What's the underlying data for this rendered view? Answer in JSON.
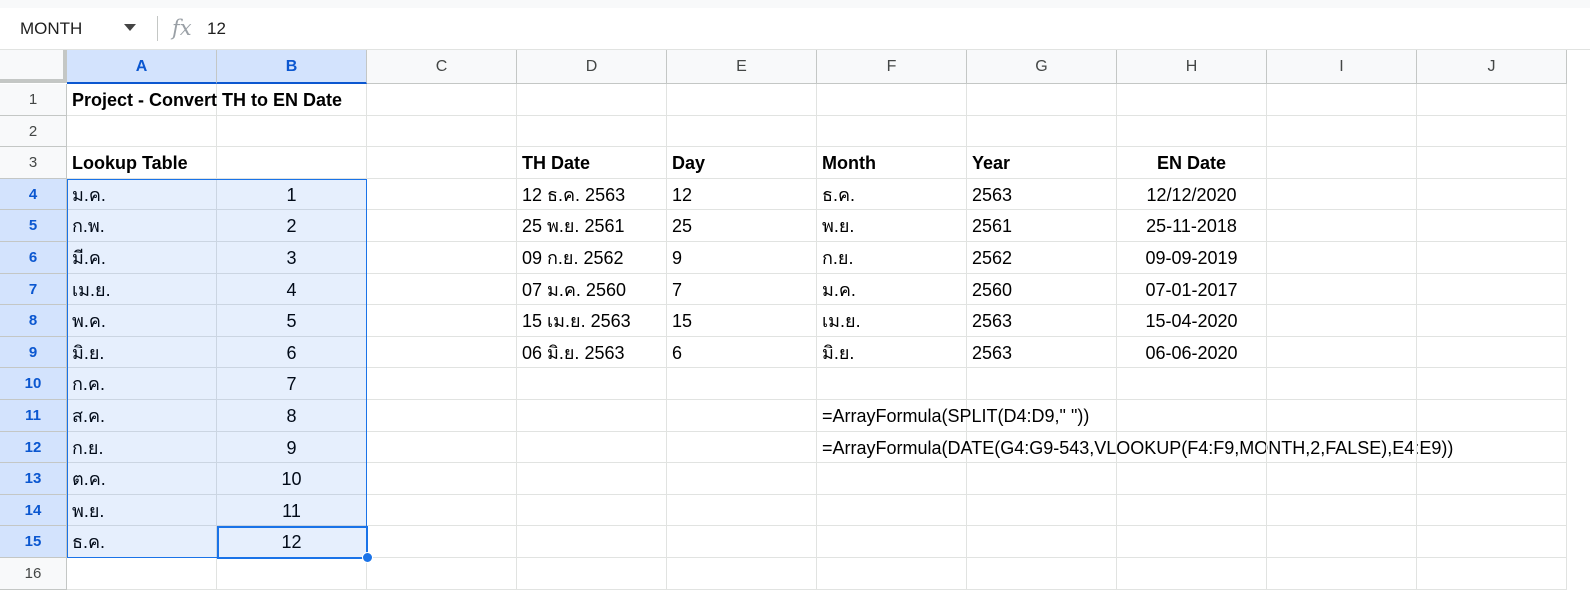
{
  "formula_bar": {
    "name_box": "MONTH",
    "fx_label": "fx",
    "value": "12"
  },
  "columns": [
    "A",
    "B",
    "C",
    "D",
    "E",
    "F",
    "G",
    "H",
    "I",
    "J"
  ],
  "rows": [
    "1",
    "2",
    "3",
    "4",
    "5",
    "6",
    "7",
    "8",
    "9",
    "10",
    "11",
    "12",
    "13",
    "14",
    "15",
    "16"
  ],
  "selected_columns": [
    "A",
    "B"
  ],
  "selected_rows": [
    "4",
    "5",
    "6",
    "7",
    "8",
    "9",
    "10",
    "11",
    "12",
    "13",
    "14",
    "15"
  ],
  "cells": {
    "A1": "Project - Convert TH to EN Date",
    "A3": "Lookup Table",
    "D3": "TH Date",
    "E3": "Day",
    "F3": "Month",
    "G3": "Year",
    "H3": "EN Date",
    "A4": "ม.ค.",
    "B4": "1",
    "A5": "ก.พ.",
    "B5": "2",
    "A6": "มี.ค.",
    "B6": "3",
    "A7": "เม.ย.",
    "B7": "4",
    "A8": "พ.ค.",
    "B8": "5",
    "A9": "มิ.ย.",
    "B9": "6",
    "A10": "ก.ค.",
    "B10": "7",
    "A11": "ส.ค.",
    "B11": "8",
    "A12": "ก.ย.",
    "B12": "9",
    "A13": "ต.ค.",
    "B13": "10",
    "A14": "พ.ย.",
    "B14": "11",
    "A15": "ธ.ค.",
    "B15": "12",
    "D4": "12 ธ.ค. 2563",
    "E4": "12",
    "F4": "ธ.ค.",
    "G4": "2563",
    "H4": "12/12/2020",
    "D5": "25 พ.ย. 2561",
    "E5": "25",
    "F5": "พ.ย.",
    "G5": "2561",
    "H5": "25-11-2018",
    "D6": "09 ก.ย. 2562",
    "E6": "9",
    "F6": "ก.ย.",
    "G6": "2562",
    "H6": "09-09-2019",
    "D7": "07 ม.ค. 2560",
    "E7": "7",
    "F7": "ม.ค.",
    "G7": "2560",
    "H7": "07-01-2017",
    "D8": "15 เม.ย. 2563",
    "E8": "15",
    "F8": "เม.ย.",
    "G8": "2563",
    "H8": "15-04-2020",
    "D9": "06 มิ.ย. 2563",
    "E9": "6",
    "F9": "มิ.ย.",
    "G9": "2563",
    "H9": "06-06-2020",
    "F11": "=ArrayFormula(SPLIT(D4:D9,\" \"))",
    "F12": "=ArrayFormula(DATE(G4:G9-543,VLOOKUP(F4:F9,MONTH,2,FALSE),E4:E9))"
  },
  "bold_cells": [
    "A1",
    "A3",
    "D3",
    "E3",
    "F3",
    "G3",
    "H3"
  ],
  "center_columns": [
    "B",
    "H"
  ],
  "active_cell": "B15",
  "colors": {
    "selection_border": "#1a73e8",
    "header_selected_bg": "#d3e3fd",
    "header_selected_text": "#0b57d0"
  }
}
